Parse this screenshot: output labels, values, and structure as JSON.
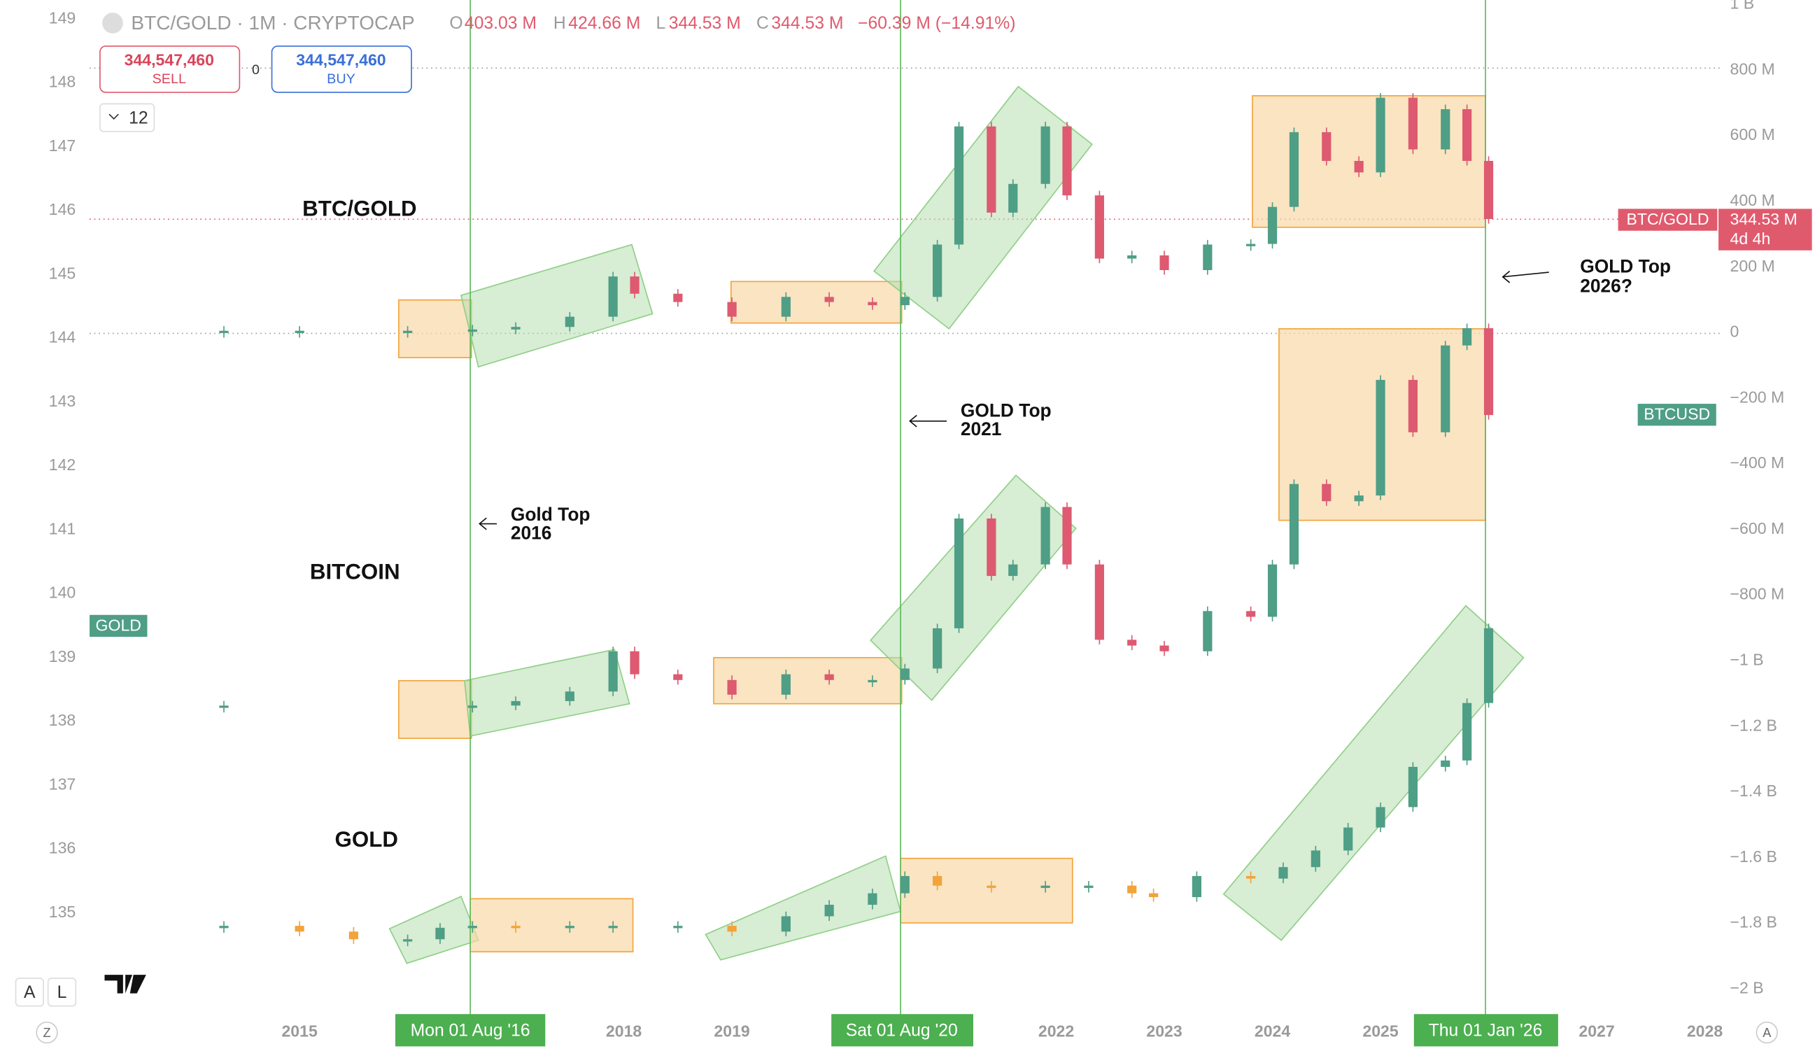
{
  "header": {
    "symbol": "BTC/GOLD · 1M · CRYPTOCAP",
    "o_label": "O",
    "o": "403.03 M",
    "h_label": "H",
    "h": "424.66 M",
    "l_label": "L",
    "l": "344.53 M",
    "c_label": "C",
    "c": "344.53 M",
    "change": "−60.39 M (−14.91%)"
  },
  "trade": {
    "sell_price": "344,547,460",
    "sell": "SELL",
    "spread": "0",
    "buy_price": "344,547,460",
    "buy": "BUY",
    "indicators": "12"
  },
  "toolbar": {
    "auto": "A",
    "log": "L",
    "zoom": "Z",
    "axis": "A"
  },
  "chart_data": {
    "type": "candlestick",
    "xlim": [
      2013,
      2028.5
    ],
    "xticks": [
      2015,
      2018,
      2019,
      2022,
      2023,
      2024,
      2025,
      2027,
      2028
    ],
    "ylim": [
      133.4,
      149.3
    ],
    "yticks": [
      135,
      136,
      137,
      138,
      139,
      140,
      141,
      142,
      143,
      144,
      145,
      146,
      147,
      148,
      149
    ],
    "y2lim": [
      -2080000000,
      1014000000
    ],
    "y2ticks": [
      {
        "value": 1000000000,
        "label": "1 B"
      },
      {
        "value": 800000000,
        "label": "800 M"
      },
      {
        "value": 600000000,
        "label": "600 M"
      },
      {
        "value": 400000000,
        "label": "400 M"
      },
      {
        "value": 200000000,
        "label": "200 M"
      },
      {
        "value": 0,
        "label": "0"
      },
      {
        "value": -200000000,
        "label": "−200 M"
      },
      {
        "value": -400000000,
        "label": "−400 M"
      },
      {
        "value": -600000000,
        "label": "−600 M"
      },
      {
        "value": -800000000,
        "label": "−800 M"
      },
      {
        "value": -1000000000,
        "label": "−1 B"
      },
      {
        "value": -1200000000,
        "label": "−1.2 B"
      },
      {
        "value": -1400000000,
        "label": "−1.4 B"
      },
      {
        "value": -1600000000,
        "label": "−1.6 B"
      },
      {
        "value": -1800000000,
        "label": "−1.8 B"
      },
      {
        "value": -2000000000,
        "label": "−2 B"
      }
    ],
    "series": [
      {
        "name": "BTC/GOLD",
        "color": "#4f9e86",
        "down_color": "#dd5a70",
        "x": [
          2014.3,
          2015,
          2016,
          2016.6,
          2017,
          2017.5,
          2017.9,
          2018.1,
          2018.5,
          2019,
          2019.5,
          2019.9,
          2020.3,
          2020.6,
          2020.9,
          2021.1,
          2021.4,
          2021.6,
          2021.9,
          2022.1,
          2022.4,
          2022.7,
          2023.0,
          2023.4,
          2023.8,
          2024.0,
          2024.2,
          2024.5,
          2024.8,
          2025.0,
          2025.3,
          2025.6,
          2025.8,
          2026.0
        ],
        "values": [
          144.12,
          144.12,
          144.12,
          144.14,
          144.18,
          144.34,
          144.97,
          144.7,
          144.57,
          144.34,
          144.65,
          144.57,
          144.52,
          144.65,
          145.47,
          147.32,
          145.97,
          146.42,
          147.32,
          146.24,
          145.25,
          145.3,
          145.07,
          145.47,
          145.48,
          146.06,
          147.23,
          146.78,
          146.6,
          147.77,
          146.96,
          147.59,
          146.78,
          145.87
        ]
      },
      {
        "name": "BITCOIN",
        "color": "#4f9e86",
        "down_color": "#dd5a70",
        "x": [
          2014.3,
          2016.6,
          2017,
          2017.5,
          2017.9,
          2018.1,
          2018.5,
          2019,
          2019.5,
          2019.9,
          2020.3,
          2020.6,
          2020.9,
          2021.1,
          2021.4,
          2021.6,
          2021.9,
          2022.1,
          2022.4,
          2022.7,
          2023.0,
          2023.4,
          2023.8,
          2024.0,
          2024.2,
          2024.5,
          2024.8,
          2025.0,
          2025.3,
          2025.6,
          2025.8,
          2026.0
        ],
        "values": [
          138.25,
          138.25,
          138.32,
          138.47,
          139.1,
          138.74,
          138.65,
          138.42,
          138.74,
          138.65,
          138.65,
          138.83,
          139.46,
          141.18,
          140.28,
          140.46,
          141.36,
          140.46,
          139.28,
          139.19,
          139.1,
          139.73,
          139.64,
          140.46,
          141.72,
          141.45,
          141.54,
          143.35,
          142.53,
          143.89,
          144.16,
          142.8
        ]
      },
      {
        "name": "GOLD",
        "color": "#4f9e86",
        "down_color": "#f2a33a",
        "x": [
          2014.3,
          2015,
          2015.5,
          2016.0,
          2016.3,
          2016.6,
          2017,
          2017.5,
          2017.9,
          2018.5,
          2019,
          2019.5,
          2019.9,
          2020.3,
          2020.6,
          2020.9,
          2021.4,
          2021.9,
          2022.3,
          2022.7,
          2022.9,
          2023.3,
          2023.8,
          2024.1,
          2024.4,
          2024.7,
          2025.0,
          2025.3,
          2025.6,
          2025.8,
          2026.0
        ],
        "values": [
          134.8,
          134.71,
          134.59,
          134.59,
          134.77,
          134.8,
          134.77,
          134.8,
          134.8,
          134.8,
          134.71,
          134.95,
          135.13,
          135.31,
          135.58,
          135.43,
          135.4,
          135.43,
          135.43,
          135.31,
          135.25,
          135.58,
          135.54,
          135.72,
          135.98,
          136.34,
          136.66,
          137.29,
          137.39,
          138.29,
          139.46
        ]
      }
    ],
    "annotations": [
      "Gold Top",
      "2016",
      "GOLD Top",
      "2021",
      "GOLD Top",
      "2026?"
    ],
    "scale_labels": {
      "btcgold": "BTC/GOLD",
      "price": "344.53 M",
      "countdown": "4d 4h",
      "btcusd": "BTCUSD",
      "gold": "GOLD"
    },
    "date_labels": [
      "Mon 01 Aug '16",
      "Sat 01 Aug '20",
      "Thu 01 Jan '26"
    ]
  }
}
